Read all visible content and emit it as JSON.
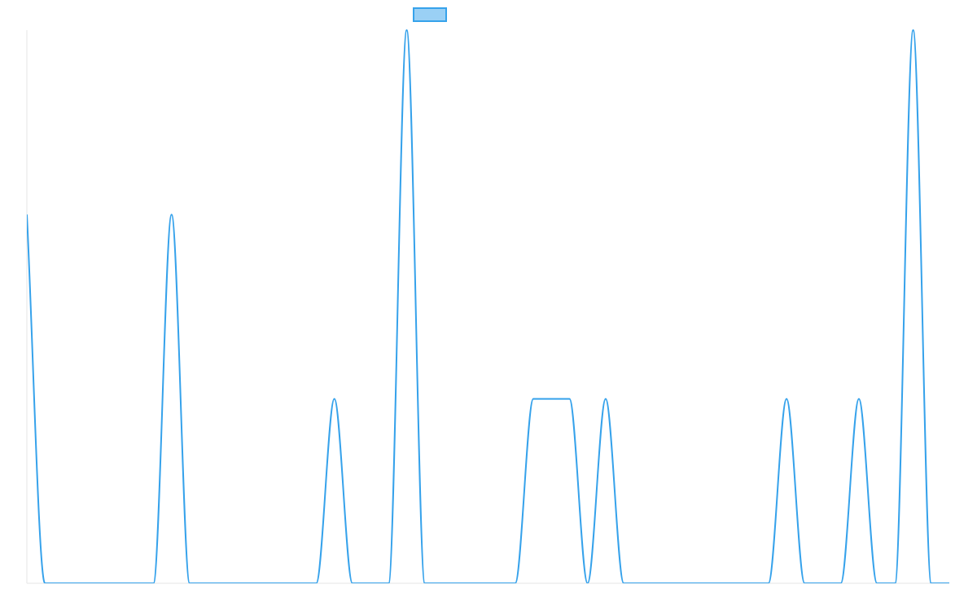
{
  "chart_data": {
    "type": "line",
    "x": [
      0,
      1,
      2,
      3,
      4,
      5,
      6,
      7,
      8,
      9,
      10,
      11,
      12,
      13,
      14,
      15,
      16,
      17,
      18,
      19,
      20,
      21,
      22,
      23,
      24,
      25,
      26,
      27,
      28,
      29,
      30,
      31,
      32,
      33,
      34,
      35,
      36,
      37,
      38,
      39,
      40,
      41,
      42,
      43,
      44,
      45,
      46,
      47,
      48,
      49,
      50,
      51
    ],
    "series": [
      {
        "name": "",
        "values": [
          2,
          0,
          0,
          0,
          0,
          0,
          0,
          0,
          2,
          0,
          0,
          0,
          0,
          0,
          0,
          0,
          0,
          1,
          0,
          0,
          0,
          3,
          0,
          0,
          0,
          0,
          0,
          0,
          1,
          1,
          1,
          0,
          1,
          0,
          0,
          0,
          0,
          0,
          0,
          0,
          0,
          0,
          1,
          0,
          0,
          0,
          1,
          0,
          0,
          3,
          0,
          0
        ],
        "color": "#36a2eb",
        "fill": "#9ad0f5"
      }
    ],
    "ylim": [
      0,
      3
    ],
    "grid": false,
    "legend": "top-center"
  }
}
